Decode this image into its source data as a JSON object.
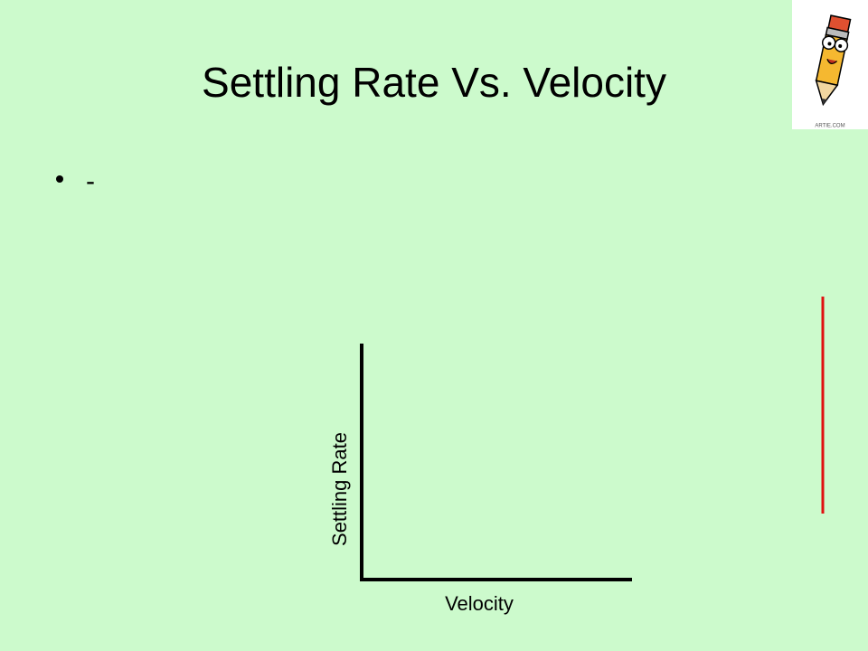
{
  "title": "Settling Rate Vs. Velocity",
  "bullets": [
    "-"
  ],
  "diagram": {
    "y_label": "Settling Rate",
    "x_label": "Velocity"
  },
  "clipart": {
    "caption": "ARTIE.COM"
  }
}
